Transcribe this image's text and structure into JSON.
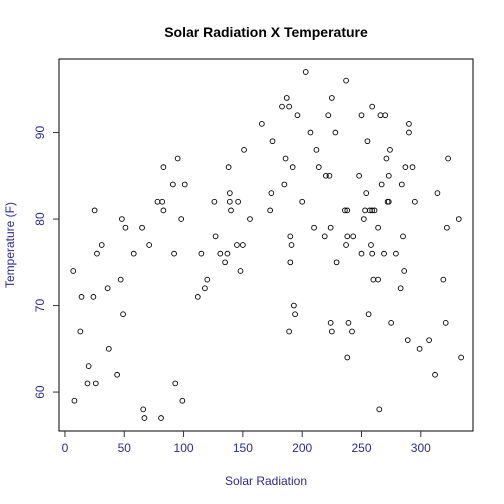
{
  "chart_data": {
    "type": "scatter",
    "title": "Solar Radiation X Temperature",
    "xlabel": "Solar Radiation",
    "ylabel": "Temperature (F)",
    "xlim": [
      -5,
      344
    ],
    "ylim": [
      55.5,
      98.5
    ],
    "xticks": [
      0,
      50,
      100,
      150,
      200,
      250,
      300
    ],
    "yticks": [
      60,
      70,
      80,
      90
    ],
    "grid": false,
    "colors": {
      "axis_text": "#2B2B8C",
      "tick": "#333333",
      "frame": "#000000",
      "points": "#000000"
    },
    "points": [
      [
        7,
        74
      ],
      [
        8,
        59
      ],
      [
        13,
        67
      ],
      [
        14,
        71
      ],
      [
        19,
        61
      ],
      [
        20,
        63
      ],
      [
        24,
        71
      ],
      [
        25,
        81
      ],
      [
        26,
        61
      ],
      [
        27,
        76
      ],
      [
        31,
        77
      ],
      [
        36,
        72
      ],
      [
        37,
        65
      ],
      [
        44,
        62
      ],
      [
        47,
        73
      ],
      [
        48,
        80
      ],
      [
        49,
        69
      ],
      [
        51,
        79
      ],
      [
        58,
        76
      ],
      [
        65,
        79
      ],
      [
        66,
        58
      ],
      [
        67,
        57
      ],
      [
        71,
        77
      ],
      [
        78,
        82
      ],
      [
        81,
        57
      ],
      [
        82,
        82
      ],
      [
        83,
        86
      ],
      [
        83,
        81
      ],
      [
        91,
        84
      ],
      [
        92,
        76
      ],
      [
        93,
        61
      ],
      [
        95,
        87
      ],
      [
        98,
        80
      ],
      [
        99,
        59
      ],
      [
        101,
        84
      ],
      [
        112,
        71
      ],
      [
        115,
        76
      ],
      [
        118,
        72
      ],
      [
        120,
        73
      ],
      [
        126,
        82
      ],
      [
        127,
        78
      ],
      [
        131,
        76
      ],
      [
        135,
        75
      ],
      [
        137,
        76
      ],
      [
        138,
        86
      ],
      [
        139,
        83
      ],
      [
        139,
        82
      ],
      [
        140,
        81
      ],
      [
        145,
        77
      ],
      [
        146,
        82
      ],
      [
        148,
        74
      ],
      [
        150,
        77
      ],
      [
        151,
        88
      ],
      [
        156,
        80
      ],
      [
        166,
        91
      ],
      [
        173,
        81
      ],
      [
        174,
        83
      ],
      [
        175,
        89
      ],
      [
        183,
        93
      ],
      [
        185,
        84
      ],
      [
        186,
        87
      ],
      [
        187,
        94
      ],
      [
        189,
        93
      ],
      [
        189,
        67
      ],
      [
        190,
        78
      ],
      [
        190,
        75
      ],
      [
        191,
        77
      ],
      [
        192,
        86
      ],
      [
        193,
        70
      ],
      [
        194,
        69
      ],
      [
        196,
        92
      ],
      [
        200,
        82
      ],
      [
        203,
        97
      ],
      [
        207,
        90
      ],
      [
        210,
        79
      ],
      [
        212,
        88
      ],
      [
        214,
        86
      ],
      [
        219,
        78
      ],
      [
        220,
        85
      ],
      [
        222,
        92
      ],
      [
        223,
        85
      ],
      [
        224,
        79
      ],
      [
        224,
        68
      ],
      [
        225,
        67
      ],
      [
        225,
        94
      ],
      [
        228,
        90
      ],
      [
        229,
        75
      ],
      [
        236,
        81
      ],
      [
        237,
        96
      ],
      [
        237,
        77
      ],
      [
        238,
        78
      ],
      [
        238,
        64
      ],
      [
        238,
        81
      ],
      [
        239,
        68
      ],
      [
        242,
        67
      ],
      [
        243,
        78
      ],
      [
        248,
        85
      ],
      [
        250,
        92
      ],
      [
        250,
        76
      ],
      [
        252,
        80
      ],
      [
        253,
        81
      ],
      [
        254,
        83
      ],
      [
        255,
        89
      ],
      [
        256,
        69
      ],
      [
        257,
        81
      ],
      [
        258,
        77
      ],
      [
        259,
        76
      ],
      [
        259,
        81
      ],
      [
        259,
        93
      ],
      [
        260,
        73
      ],
      [
        261,
        81
      ],
      [
        264,
        79
      ],
      [
        264,
        73
      ],
      [
        265,
        58
      ],
      [
        266,
        92
      ],
      [
        267,
        84
      ],
      [
        269,
        76
      ],
      [
        270,
        92
      ],
      [
        271,
        87
      ],
      [
        272,
        82
      ],
      [
        273,
        82
      ],
      [
        273,
        85
      ],
      [
        274,
        88
      ],
      [
        275,
        68
      ],
      [
        279,
        76
      ],
      [
        283,
        72
      ],
      [
        284,
        84
      ],
      [
        285,
        78
      ],
      [
        286,
        74
      ],
      [
        287,
        86
      ],
      [
        289,
        66
      ],
      [
        290,
        91
      ],
      [
        290,
        90
      ],
      [
        293,
        86
      ],
      [
        295,
        82
      ],
      [
        299,
        65
      ],
      [
        307,
        66
      ],
      [
        312,
        62
      ],
      [
        314,
        83
      ],
      [
        319,
        73
      ],
      [
        321,
        68
      ],
      [
        322,
        79
      ],
      [
        323,
        87
      ],
      [
        332,
        80
      ],
      [
        334,
        64
      ]
    ]
  }
}
